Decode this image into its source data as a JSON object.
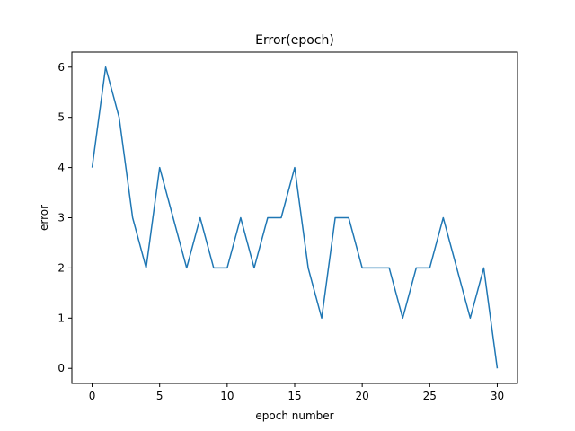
{
  "chart_data": {
    "type": "line",
    "title": "Error(epoch)",
    "xlabel": "epoch number",
    "ylabel": "error",
    "xlim": [
      -1.5,
      31.5
    ],
    "ylim": [
      -0.3,
      6.3
    ],
    "xticks": [
      0,
      5,
      10,
      15,
      20,
      25,
      30
    ],
    "yticks": [
      0,
      1,
      2,
      3,
      4,
      5,
      6
    ],
    "grid": false,
    "series": [
      {
        "color": "#1f77b4",
        "x": [
          0,
          1,
          2,
          3,
          4,
          5,
          6,
          7,
          8,
          9,
          10,
          11,
          12,
          13,
          14,
          15,
          16,
          17,
          18,
          19,
          20,
          21,
          22,
          23,
          24,
          25,
          26,
          27,
          28,
          29,
          30
        ],
        "y": [
          4,
          6,
          5,
          3,
          2,
          4,
          3,
          2,
          3,
          2,
          2,
          3,
          2,
          3,
          3,
          4,
          2,
          1,
          3,
          3,
          2,
          2,
          2,
          1,
          2,
          2,
          3,
          2,
          1,
          2,
          0
        ]
      }
    ]
  }
}
